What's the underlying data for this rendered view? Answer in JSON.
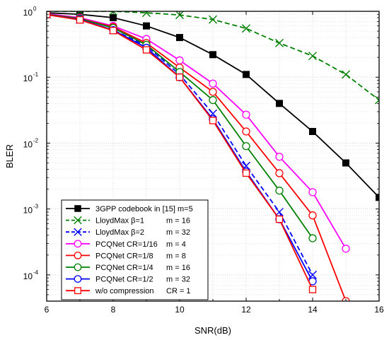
{
  "chart_data": {
    "type": "line",
    "title": "",
    "xlabel": "SNR(dB)",
    "ylabel": "BLER",
    "y_scale": "log",
    "xlim": [
      6,
      16
    ],
    "ylim": [
      4e-05,
      1
    ],
    "grid": "on",
    "legend_placement": "bottom-left",
    "x_ticks": [
      "6",
      "8",
      "10",
      "12",
      "14",
      "16"
    ],
    "y_ticks": [
      {
        "value": 1,
        "base": "10",
        "exp": "0"
      },
      {
        "value": 0.1,
        "base": "10",
        "exp": "-1"
      },
      {
        "value": 0.01,
        "base": "10",
        "exp": "-2"
      },
      {
        "value": 0.001,
        "base": "10",
        "exp": "-3"
      },
      {
        "value": 0.0001,
        "base": "10",
        "exp": "-4"
      }
    ],
    "series": [
      {
        "name": "3GPP codebook in [15] m=5",
        "label_main": "3GPP codebook in [15] m=5",
        "label_param": "",
        "color": "#000000",
        "marker": "filled-square",
        "dash": "solid",
        "x": [
          6,
          7,
          8,
          9,
          10,
          11,
          12,
          13,
          14,
          15,
          16
        ],
        "y": [
          0.95,
          0.9,
          0.8,
          0.6,
          0.4,
          0.22,
          0.11,
          0.04,
          0.015,
          0.005,
          0.0015
        ]
      },
      {
        "name": "LloydMax β=1 m = 16",
        "label_main": "LloydMax  β=1",
        "label_param": "m = 16",
        "color": "#008000",
        "marker": "x",
        "dash": "dashed",
        "x": [
          6,
          7,
          8,
          9,
          10,
          11,
          12,
          13,
          14,
          15,
          16
        ],
        "y": [
          1,
          1,
          1,
          0.95,
          0.88,
          0.75,
          0.55,
          0.33,
          0.21,
          0.11,
          0.045
        ]
      },
      {
        "name": "LloydMax β=2 m = 32",
        "label_main": "LloydMax  β=2",
        "label_param": "m = 32",
        "color": "#0000ff",
        "marker": "x",
        "dash": "dashed",
        "x": [
          6,
          7,
          8,
          9,
          10,
          11,
          12,
          13,
          14
        ],
        "y": [
          0.9,
          0.75,
          0.52,
          0.3,
          0.11,
          0.028,
          0.0045,
          0.0009,
          0.0001
        ]
      },
      {
        "name": "PCQNet CR=1/16 m = 4",
        "label_main": "PCQNet   CR=1/16",
        "label_param": "m = 4",
        "color": "#ff00ff",
        "marker": "open-circle",
        "dash": "solid",
        "x": [
          6,
          7,
          8,
          9,
          10,
          11,
          12,
          13,
          14,
          15
        ],
        "y": [
          0.92,
          0.8,
          0.6,
          0.38,
          0.18,
          0.08,
          0.027,
          0.0062,
          0.0018,
          0.00025
        ]
      },
      {
        "name": "PCQNet CR=1/8 m = 8",
        "label_main": "PCQNet   CR=1/8",
        "label_param": "m = 8",
        "color": "#ff0000",
        "marker": "open-circle",
        "dash": "solid",
        "x": [
          6,
          7,
          8,
          9,
          10,
          11,
          12,
          13,
          14,
          15
        ],
        "y": [
          0.9,
          0.78,
          0.58,
          0.33,
          0.14,
          0.06,
          0.015,
          0.0035,
          0.0008,
          4e-05
        ]
      },
      {
        "name": "PCQNet CR=1/4 m = 16",
        "label_main": "PCQNet   CR=1/4",
        "label_param": "m = 16",
        "color": "#008000",
        "marker": "open-circle",
        "dash": "solid",
        "x": [
          6,
          7,
          8,
          9,
          10,
          11,
          12,
          13,
          14
        ],
        "y": [
          0.9,
          0.77,
          0.56,
          0.31,
          0.12,
          0.045,
          0.009,
          0.0019,
          0.00036
        ]
      },
      {
        "name": "PCQNet CR=1/2 m = 32",
        "label_main": "PCQNet   CR=1/2",
        "label_param": "m = 32",
        "color": "#0000ff",
        "marker": "open-circle",
        "dash": "solid",
        "x": [
          6,
          7,
          8,
          9,
          10,
          11,
          12,
          13,
          14
        ],
        "y": [
          0.89,
          0.75,
          0.52,
          0.28,
          0.1,
          0.023,
          0.0037,
          0.0007,
          8e-05
        ]
      },
      {
        "name": "w/o compression CR = 1",
        "label_main": "w/o compression",
        "label_param": "CR = 1",
        "color": "#ff0000",
        "marker": "open-square",
        "dash": "solid",
        "x": [
          6,
          7,
          8,
          9,
          10,
          11,
          12,
          13,
          14
        ],
        "y": [
          0.89,
          0.74,
          0.51,
          0.26,
          0.1,
          0.022,
          0.0035,
          0.0007,
          6e-05
        ]
      }
    ]
  }
}
